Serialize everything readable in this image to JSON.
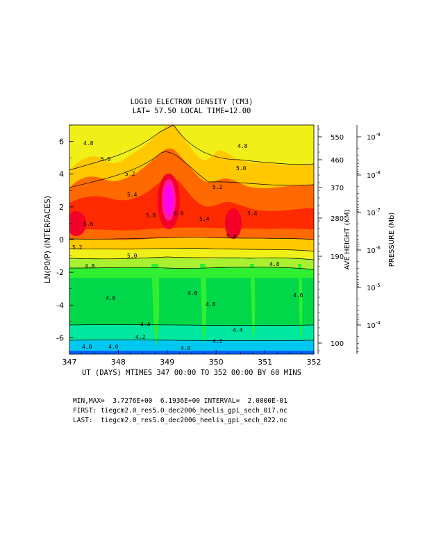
{
  "chart_data": {
    "type": "heatmap",
    "title": "LOG10 ELECTRON DENSITY (CM3)",
    "subtitle": "LAT= 57.50 LOCAL TIME=12.00",
    "xlabel": "UT (DAYS) MTIMES 347 00:00 TO 352 00:00 BY   60 MINS",
    "ylabel": "LN(P0/P) (INTERFACES)",
    "xlim": [
      347,
      352
    ],
    "ylim": [
      -7,
      7
    ],
    "x_ticks": [
      "347",
      "348",
      "349",
      "350",
      "351",
      "352"
    ],
    "y_ticks": [
      "6",
      "4",
      "2",
      "0",
      "-2",
      "-4",
      "-6"
    ],
    "right_axis_height": {
      "label": "AVE HEIGHT (KM)",
      "ticks": [
        "550",
        "460",
        "370",
        "280",
        "190",
        "100"
      ]
    },
    "right_axis_pressure": {
      "label": "PRESSURE (Mb)",
      "ticks": [
        "10^-9",
        "10^-8",
        "10^-7",
        "10^-6",
        "10^-5",
        "10^-4"
      ]
    },
    "contour_labels": [
      "4.8",
      "5.0",
      "5.2",
      "5.4",
      "5.6",
      "5.8",
      "6.0",
      "4.6",
      "4.4",
      "4.2",
      "4.0"
    ],
    "min": 3.7276,
    "max": 6.1936,
    "interval": 0.2
  },
  "footer": {
    "minmax": "MIN,MAX=  3.7276E+00  6.1936E+00 INTERVAL=  2.0000E-01",
    "first": "FIRST: tiegcm2.0_res5.0_dec2006_heelis_gpi_sech_017.nc",
    "last": "LAST:  tiegcm2.0_res5.0_dec2006_heelis_gpi_sech_022.nc"
  },
  "colors": {
    "c40": "#00c8f0",
    "c42": "#00e8a0",
    "c44": "#00d84a",
    "c46": "#30ee30",
    "c48": "#a8f030",
    "c50": "#f0f018",
    "c52": "#ffc800",
    "c54": "#ff6a00",
    "c56": "#ff2a00",
    "c58": "#f40028",
    "c60": "#ff1aa0",
    "c62": "#ff00ff",
    "low": "#0060ff"
  }
}
